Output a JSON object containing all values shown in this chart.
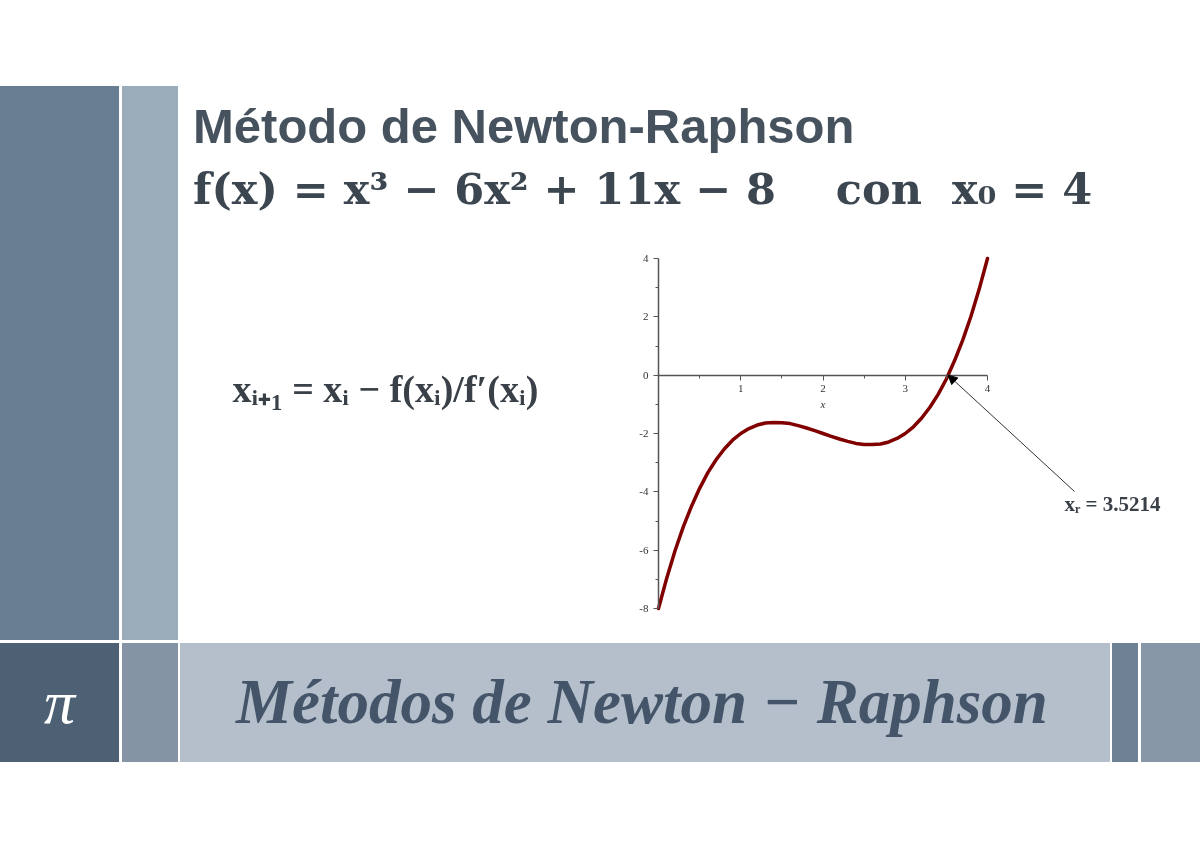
{
  "chart_data": {
    "type": "line",
    "title": "Método de Newton-Raphson",
    "subtitle": "f(x) = x³ − 6x² + 11x − 8    con  x₀ = 4",
    "xlabel": "x",
    "x": [
      0,
      0.1,
      0.2,
      0.3,
      0.4,
      0.5,
      0.6,
      0.7,
      0.8,
      0.9,
      1,
      1.1,
      1.2,
      1.3,
      1.4,
      1.5,
      1.6,
      1.7,
      1.8,
      1.9,
      2,
      2.1,
      2.2,
      2.3,
      2.4,
      2.5,
      2.6,
      2.7,
      2.8,
      2.9,
      3,
      3.1,
      3.2,
      3.3,
      3.4,
      3.5,
      3.6,
      3.7,
      3.8,
      3.9,
      4
    ],
    "series": [
      {
        "color": "#800000",
        "values": [
          -8,
          -6.96,
          -6.03,
          -5.21,
          -4.5,
          -3.88,
          -3.34,
          -2.9,
          -2.53,
          -2.23,
          -2,
          -1.83,
          -1.71,
          -1.64,
          -1.62,
          -1.63,
          -1.66,
          -1.73,
          -1.81,
          -1.9,
          -2,
          -2.1,
          -2.19,
          -2.27,
          -2.34,
          -2.38,
          -2.38,
          -2.36,
          -2.29,
          -2.17,
          -2,
          -1.77,
          -1.47,
          -1.1,
          -0.66,
          -0.13,
          0.5,
          1.21,
          2.03,
          2.96,
          4
        ]
      }
    ],
    "xlim": [
      0,
      4
    ],
    "ylim": [
      -8,
      4
    ],
    "xticks": [
      {
        "value": 0.5,
        "label": null
      },
      1,
      {
        "value": 1.5,
        "label": null
      },
      2,
      {
        "value": 2.5,
        "label": null
      },
      3,
      {
        "value": 3.5,
        "label": null
      },
      4
    ],
    "yticks": [
      -8,
      {
        "value": -7,
        "label": null
      },
      -6,
      {
        "value": -5,
        "label": null
      },
      -4,
      {
        "value": -3,
        "label": null
      },
      -2,
      {
        "value": -1,
        "label": null
      },
      0,
      {
        "value": 1,
        "label": null
      },
      2,
      {
        "value": 3,
        "label": null
      },
      4
    ],
    "grid": false,
    "annotations": [
      "xᵢ₊₁ = xᵢ − f(xᵢ)/f′(xᵢ)",
      {
        "text": "xᵣ = 3.5214",
        "x": 3.5214,
        "y": 0
      },
      "π",
      "Métodos de Newton − Raphson"
    ]
  }
}
